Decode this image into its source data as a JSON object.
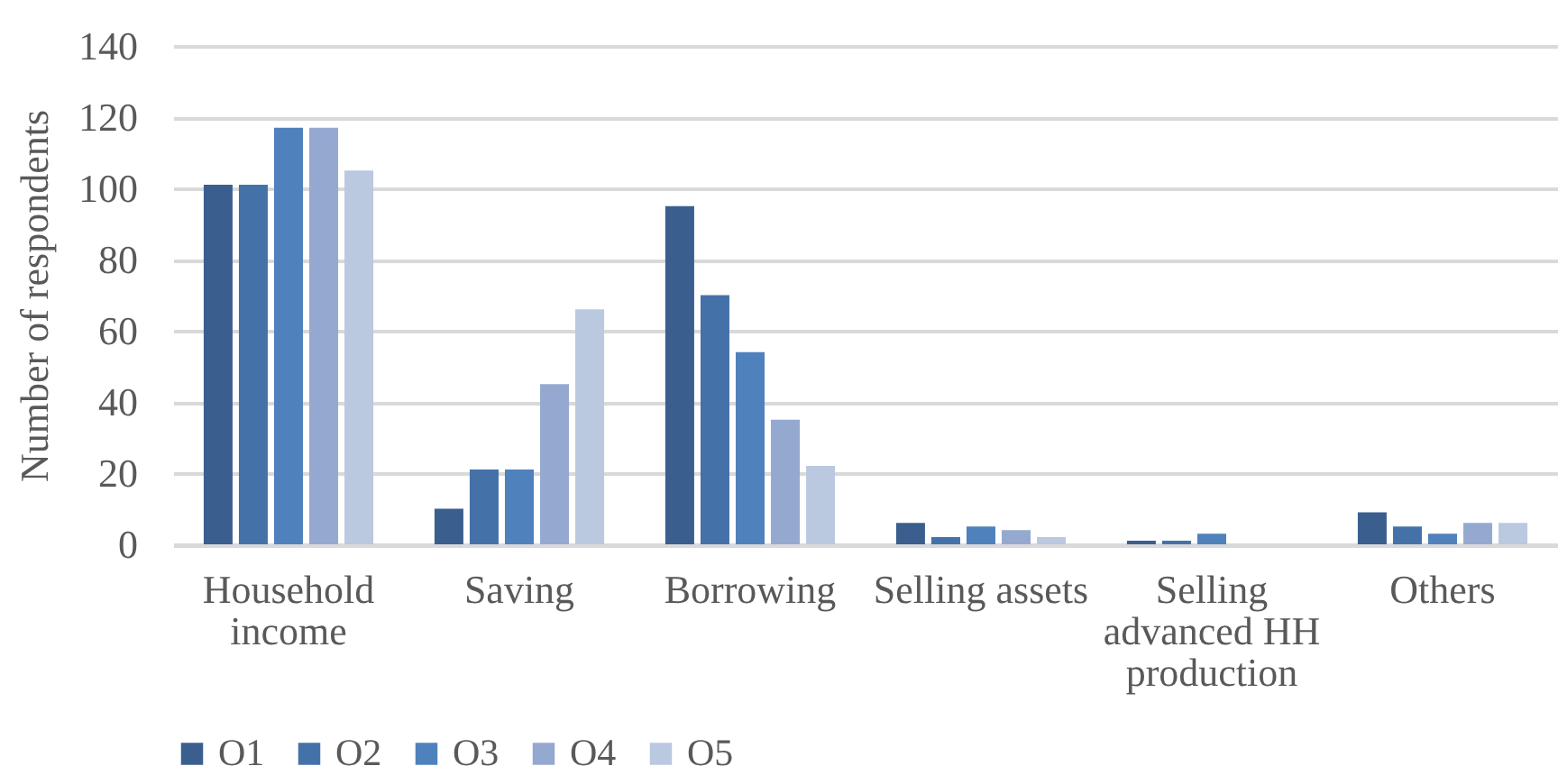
{
  "chart_data": {
    "type": "bar",
    "ylabel": "Number of respondents",
    "categories": [
      "Household income",
      "Saving",
      "Borrowing",
      "Selling assets",
      "Selling advanced HH production",
      "Others"
    ],
    "series": [
      {
        "name": "O1",
        "color": "#3a5f8f",
        "values": [
          101,
          10,
          95,
          6,
          1,
          9
        ]
      },
      {
        "name": "O2",
        "color": "#4472a8",
        "values": [
          101,
          21,
          70,
          2,
          1,
          5
        ]
      },
      {
        "name": "O3",
        "color": "#4f81bd",
        "values": [
          117,
          21,
          54,
          5,
          3,
          3
        ]
      },
      {
        "name": "O4",
        "color": "#95a9d0",
        "values": [
          117,
          45,
          35,
          4,
          0,
          6
        ]
      },
      {
        "name": "O5",
        "color": "#bac8e0",
        "values": [
          105,
          66,
          22,
          2,
          0,
          6
        ]
      }
    ],
    "ylim": [
      0,
      140
    ],
    "yticks": [
      0,
      20,
      40,
      60,
      80,
      100,
      120,
      140
    ],
    "grid": "y",
    "legend": "bottom"
  }
}
